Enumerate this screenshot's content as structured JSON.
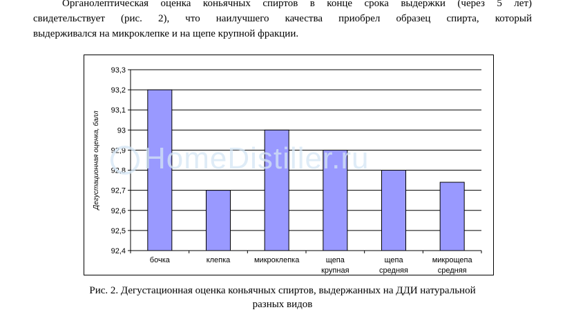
{
  "paragraph": {
    "lines": [
      "Органолептическая оценка коньячных спиртов в конце срока выдержки (через 5 лет)",
      "свидетельствует (рис. 2), что наилучшего качества приобрел образец спирта, который",
      "выдерживался на микроклепке и на щепе крупной фракции."
    ]
  },
  "watermark": "HomeDistiller.ru",
  "caption": {
    "line1": "Рис. 2. Дегустационная оценка коньячных спиртов, выдержанных на ДДИ натуральной",
    "line2": "разных видов"
  },
  "chart_data": {
    "type": "bar",
    "categories": [
      "бочка",
      "клепка",
      "микроклепка",
      "щепа крупная",
      "щепа средняя",
      "микрощепа средняя"
    ],
    "category_lines": [
      [
        "бочка"
      ],
      [
        "клепка"
      ],
      [
        "микроклепка"
      ],
      [
        "щепа",
        "крупная"
      ],
      [
        "щепа",
        "средняя"
      ],
      [
        "микрощепа",
        "средняя"
      ]
    ],
    "values": [
      93.2,
      92.7,
      93.0,
      92.9,
      92.8,
      92.74
    ],
    "ylabel": "Дегустационная оценка, балл",
    "ylim": [
      92.4,
      93.3
    ],
    "yticks": [
      "93,3",
      "93,2",
      "93,1",
      "93",
      "92,9",
      "92,8",
      "92,7",
      "92,6",
      "92,5",
      "92,4"
    ],
    "grid": true,
    "bar_color": "#9999ff"
  }
}
